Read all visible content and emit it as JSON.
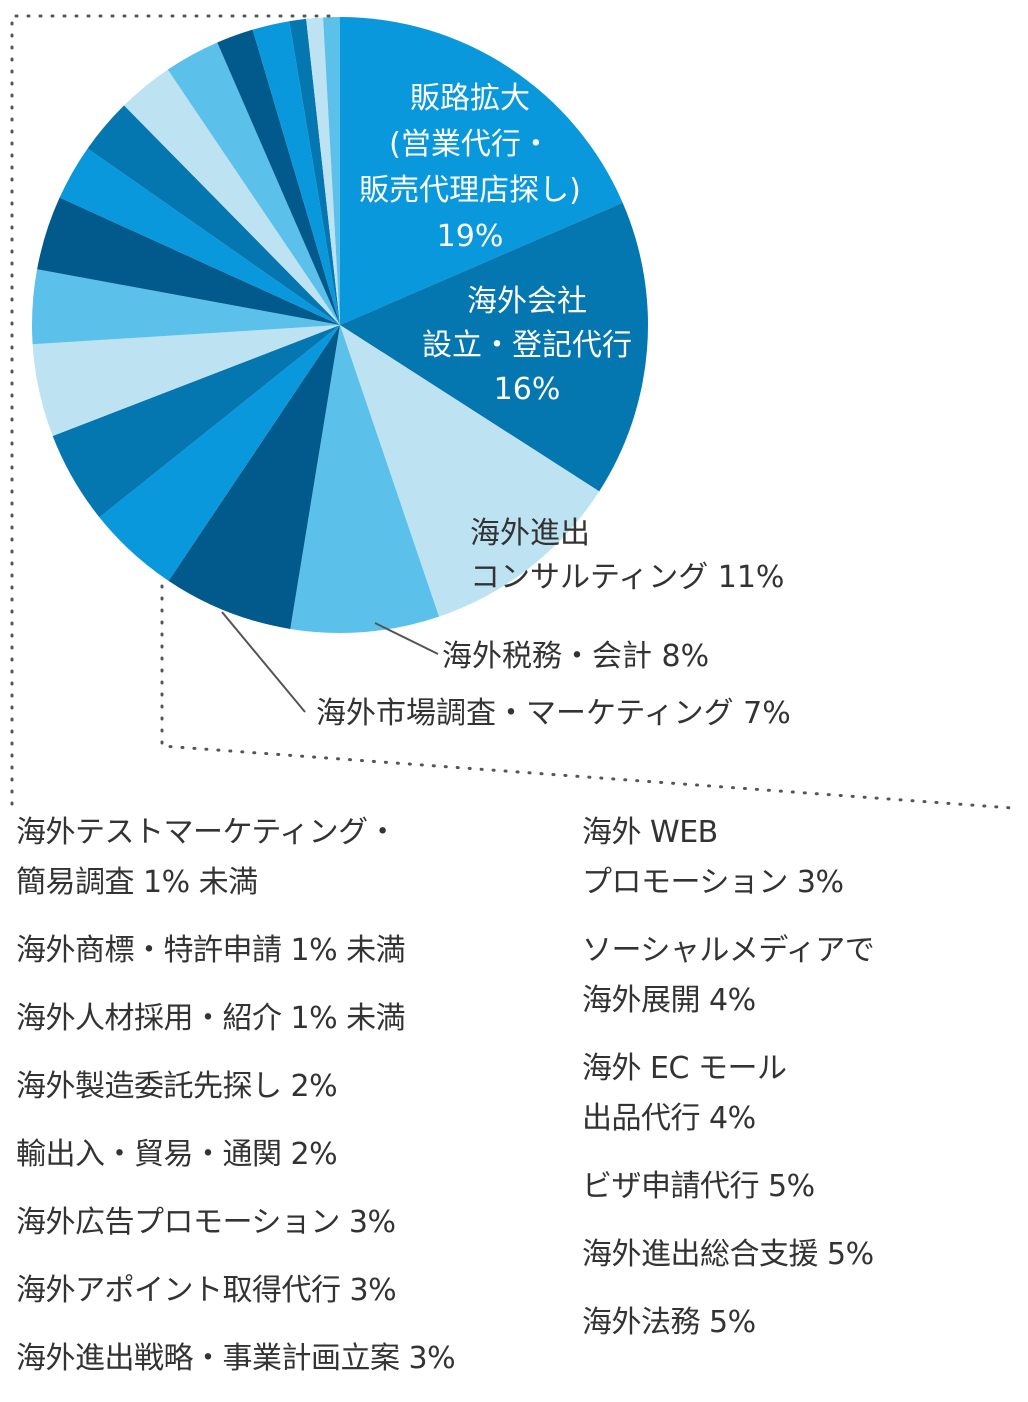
{
  "chart_data": {
    "type": "pie",
    "slices": [
      {
        "label": "販路拡大\n(営業代行・\n販売代理店探し)",
        "value_label": "19%",
        "value": 19,
        "color": "#0a98dc"
      },
      {
        "label": "海外会社\n設立・登記代行",
        "value_label": "16%",
        "value": 16,
        "color": "#0476b0"
      },
      {
        "label": "海外進出\nコンサルティング",
        "value_label": "11%",
        "value": 11,
        "color": "#bde3f3"
      },
      {
        "label": "海外税務・会計",
        "value_label": "8%",
        "value": 8,
        "color": "#5bc1eb"
      },
      {
        "label": "海外市場調査・マーケティング",
        "value_label": "7%",
        "value": 7,
        "color": "#025a8c"
      },
      {
        "label": "海外法務",
        "value_label": "5%",
        "value": 5,
        "color": "#0a98dc"
      },
      {
        "label": "海外進出総合支援",
        "value_label": "5%",
        "value": 5,
        "color": "#0476b0"
      },
      {
        "label": "ビザ申請代行",
        "value_label": "5%",
        "value": 5,
        "color": "#bde3f3"
      },
      {
        "label": "海外 EC モール\n出品代行",
        "value_label": "4%",
        "value": 4,
        "color": "#5bc1eb"
      },
      {
        "label": "ソーシャルメディアで\n海外展開",
        "value_label": "4%",
        "value": 4,
        "color": "#025a8c"
      },
      {
        "label": "海外 WEB\nプロモーション",
        "value_label": "3%",
        "value": 3,
        "color": "#0a98dc"
      },
      {
        "label": "海外進出戦略・事業計画立案",
        "value_label": "3%",
        "value": 3,
        "color": "#0476b0"
      },
      {
        "label": "海外アポイント取得代行",
        "value_label": "3%",
        "value": 3,
        "color": "#bde3f3"
      },
      {
        "label": "海外広告プロモーション",
        "value_label": "3%",
        "value": 3,
        "color": "#5bc1eb"
      },
      {
        "label": "輸出入・貿易・通関",
        "value_label": "2%",
        "value": 2,
        "color": "#025a8c"
      },
      {
        "label": "海外製造委託先探し",
        "value_label": "2%",
        "value": 2,
        "color": "#0a98dc"
      },
      {
        "label": "海外人材採用・紹介",
        "value_label": "1% 未満",
        "value": 0.9,
        "color": "#0476b0"
      },
      {
        "label": "海外商標・特許申請",
        "value_label": "1% 未満",
        "value": 0.9,
        "color": "#bde3f3"
      },
      {
        "label": "海外テストマーケティング・\n簡易調査",
        "value_label": "1% 未満",
        "value": 0.9,
        "color": "#5bc1eb"
      }
    ],
    "inside_labels": [
      {
        "lines": [
          "販路拡大",
          "(営業代行・",
          "販売代理店探し)",
          "19%"
        ],
        "tone": "light"
      },
      {
        "lines": [
          "海外会社",
          "設立・登記代行",
          "16%"
        ],
        "tone": "light"
      },
      {
        "lines": [
          "海外進出",
          "コンサルティング 11%"
        ],
        "tone": "dark"
      },
      {
        "lines": [
          "海外税務・会計  8%"
        ],
        "tone": "dark"
      },
      {
        "lines": [
          "海外市場調査・マーケティング  7%"
        ],
        "tone": "dark"
      }
    ],
    "legend_left": [
      "海外テストマーケティング・\n簡易調査  1% 未満",
      "海外商標・特許申請  1% 未満",
      "海外人材採用・紹介  1% 未満",
      "海外製造委託先探し  2%",
      "輸出入・貿易・通関  2%",
      "海外広告プロモーション  3%",
      "海外アポイント取得代行  3%",
      "海外進出戦略・事業計画立案  3%"
    ],
    "legend_right": [
      "海外 WEB\nプロモーション  3%",
      "ソーシャルメディアで\n海外展開  4%",
      "海外 EC モール\n出品代行  4%",
      "ビザ申請代行  5%",
      "海外進出総合支援  5%",
      "海外法務  5%"
    ]
  }
}
